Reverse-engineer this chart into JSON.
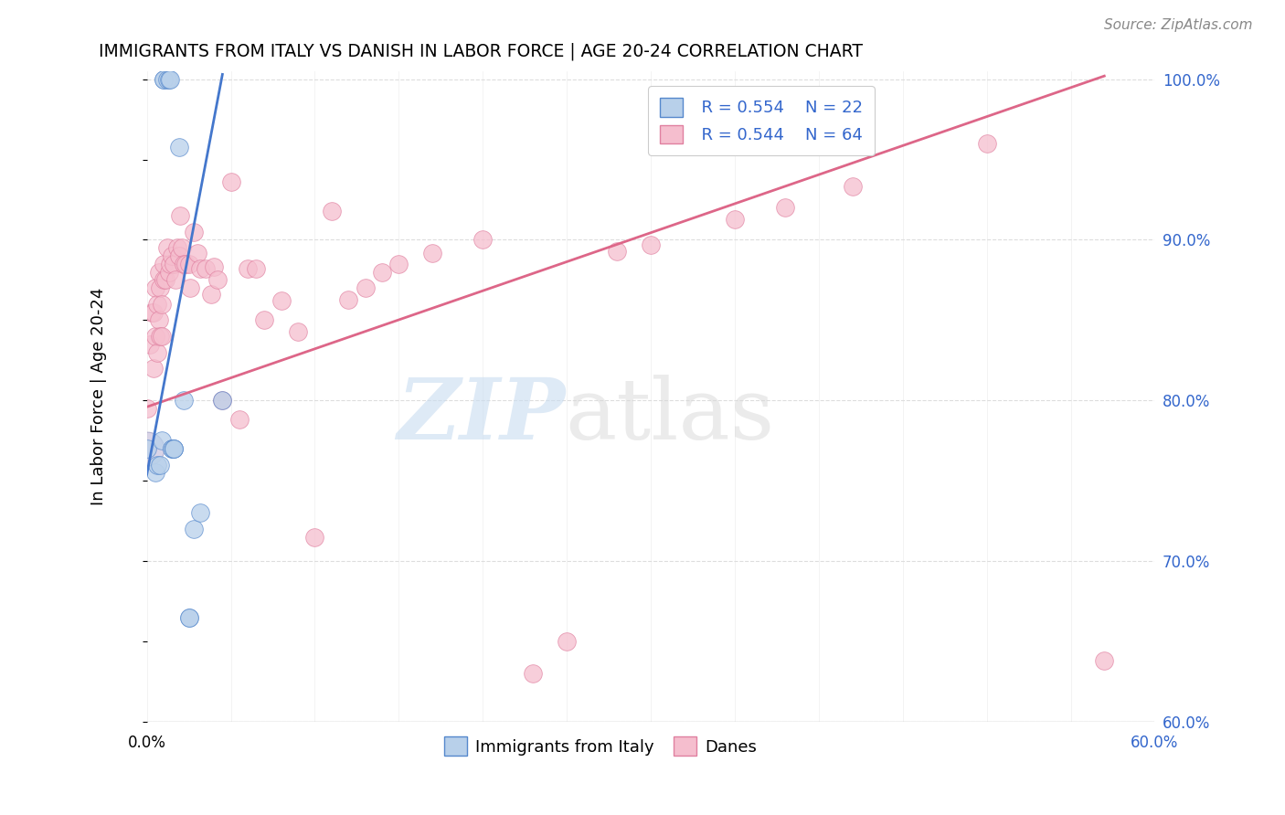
{
  "title": "IMMIGRANTS FROM ITALY VS DANISH IN LABOR FORCE | AGE 20-24 CORRELATION CHART",
  "source": "Source: ZipAtlas.com",
  "ylabel": "In Labor Force | Age 20-24",
  "xmin": 0.0,
  "xmax": 0.6,
  "ymin": 0.6,
  "ymax": 1.005,
  "xtick_positions": [
    0.0,
    0.05,
    0.1,
    0.15,
    0.2,
    0.25,
    0.3,
    0.35,
    0.4,
    0.45,
    0.5,
    0.55,
    0.6
  ],
  "xtick_labels_show": {
    "0.0": "0.0%",
    "0.60": "60.0%"
  },
  "yticks": [
    0.6,
    0.7,
    0.8,
    0.9,
    1.0
  ],
  "ytick_labels": [
    "60.0%",
    "70.0%",
    "80.0%",
    "90.0%",
    "100.0%"
  ],
  "legend_blue_r": "R = 0.554",
  "legend_blue_n": "N = 22",
  "legend_pink_r": "R = 0.544",
  "legend_pink_n": "N = 64",
  "blue_fill": "#b8d0ea",
  "pink_fill": "#f5bece",
  "blue_edge": "#5588cc",
  "pink_edge": "#e080a0",
  "blue_line": "#4477cc",
  "pink_line": "#dd6688",
  "grid_color": "#dddddd",
  "watermark_zip_color": "#c8dcf0",
  "watermark_atlas_color": "#d8d8d8",
  "blue_points_x": [
    0.0,
    0.005,
    0.006,
    0.008,
    0.009,
    0.01,
    0.01,
    0.012,
    0.013,
    0.014,
    0.015,
    0.015,
    0.016,
    0.016,
    0.016,
    0.019,
    0.022,
    0.025,
    0.025,
    0.028,
    0.032,
    0.045
  ],
  "blue_points_y": [
    0.77,
    0.755,
    0.76,
    0.76,
    0.775,
    1.0,
    1.0,
    1.0,
    1.0,
    1.0,
    0.77,
    0.77,
    0.77,
    0.77,
    0.77,
    0.958,
    0.8,
    0.665,
    0.665,
    0.72,
    0.73,
    0.8
  ],
  "pink_points_x": [
    0.0,
    0.002,
    0.003,
    0.004,
    0.004,
    0.005,
    0.005,
    0.006,
    0.006,
    0.007,
    0.007,
    0.008,
    0.008,
    0.009,
    0.009,
    0.01,
    0.01,
    0.011,
    0.012,
    0.013,
    0.014,
    0.015,
    0.016,
    0.017,
    0.018,
    0.019,
    0.02,
    0.021,
    0.022,
    0.023,
    0.025,
    0.026,
    0.028,
    0.03,
    0.032,
    0.035,
    0.038,
    0.04,
    0.042,
    0.045,
    0.05,
    0.055,
    0.06,
    0.065,
    0.07,
    0.08,
    0.09,
    0.1,
    0.11,
    0.12,
    0.13,
    0.14,
    0.15,
    0.17,
    0.2,
    0.23,
    0.25,
    0.28,
    0.3,
    0.35,
    0.38,
    0.42,
    0.5,
    0.57
  ],
  "pink_points_y": [
    0.795,
    0.835,
    0.855,
    0.855,
    0.82,
    0.87,
    0.84,
    0.86,
    0.83,
    0.88,
    0.85,
    0.87,
    0.84,
    0.86,
    0.84,
    0.885,
    0.875,
    0.875,
    0.895,
    0.88,
    0.885,
    0.89,
    0.885,
    0.875,
    0.895,
    0.89,
    0.915,
    0.895,
    0.885,
    0.885,
    0.885,
    0.87,
    0.905,
    0.892,
    0.882,
    0.882,
    0.866,
    0.883,
    0.875,
    0.8,
    0.936,
    0.788,
    0.882,
    0.882,
    0.85,
    0.862,
    0.843,
    0.715,
    0.918,
    0.863,
    0.87,
    0.88,
    0.885,
    0.892,
    0.9,
    0.63,
    0.65,
    0.893,
    0.897,
    0.913,
    0.92,
    0.933,
    0.96,
    0.638
  ],
  "blue_trend_x": [
    0.0,
    0.045
  ],
  "blue_trend_y": [
    0.754,
    1.003
  ],
  "pink_trend_x": [
    0.0,
    0.57
  ],
  "pink_trend_y": [
    0.796,
    1.002
  ]
}
